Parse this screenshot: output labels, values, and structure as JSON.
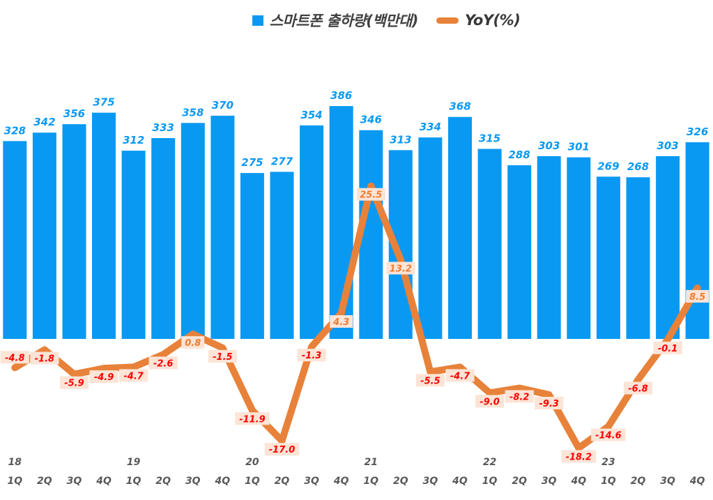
{
  "legend": {
    "bars_label": "스마트폰 출하량(백만대)",
    "line_label": "YoY(%)"
  },
  "colors": {
    "bar": "#0a99f2",
    "bar_label": "#0a99f2",
    "line": "#e8823a",
    "point_label_bg": "#fce4d6",
    "point_label_negative": "#ff0000",
    "point_label_positive": "#ed7d31",
    "axis_text": "#595959"
  },
  "chart_data": {
    "type": "bar",
    "subtype": "combo-bar-line",
    "categories": [
      "1Q",
      "2Q",
      "3Q",
      "4Q",
      "1Q",
      "2Q",
      "3Q",
      "4Q",
      "1Q",
      "2Q",
      "3Q",
      "4Q",
      "1Q",
      "2Q",
      "3Q",
      "4Q",
      "1Q",
      "2Q",
      "3Q",
      "4Q",
      "1Q",
      "2Q",
      "3Q",
      "4Q"
    ],
    "year_row": [
      {
        "index": 0,
        "label": "18"
      },
      {
        "index": 4,
        "label": "19"
      },
      {
        "index": 8,
        "label": "20"
      },
      {
        "index": 12,
        "label": "21"
      },
      {
        "index": 16,
        "label": "22"
      },
      {
        "index": 20,
        "label": "23"
      }
    ],
    "series": [
      {
        "name": "스마트폰 출하량(백만대)",
        "type": "bar",
        "axis": "left",
        "values": [
          328,
          342,
          356,
          375,
          312,
          333,
          358,
          370,
          275,
          277,
          354,
          386,
          346,
          313,
          334,
          368,
          315,
          288,
          303,
          301,
          269,
          268,
          303,
          326
        ]
      },
      {
        "name": "YoY(%)",
        "type": "line",
        "axis": "right",
        "values": [
          -4.8,
          -1.8,
          -5.9,
          -4.9,
          -4.7,
          -2.6,
          0.8,
          -1.5,
          -11.9,
          -17.0,
          -1.3,
          4.3,
          25.5,
          13.2,
          -5.5,
          -4.7,
          -9.0,
          -8.2,
          -9.3,
          -18.2,
          -14.6,
          -6.8,
          -0.1,
          8.5
        ]
      }
    ],
    "title": "",
    "xlabel": "",
    "ylabel": "",
    "bar_axis_range": [
      0,
      450
    ],
    "line_axis_range": [
      -25,
      30
    ],
    "grid": false,
    "axes_hidden": true,
    "legend_position": "top-center",
    "data_labels": true
  }
}
